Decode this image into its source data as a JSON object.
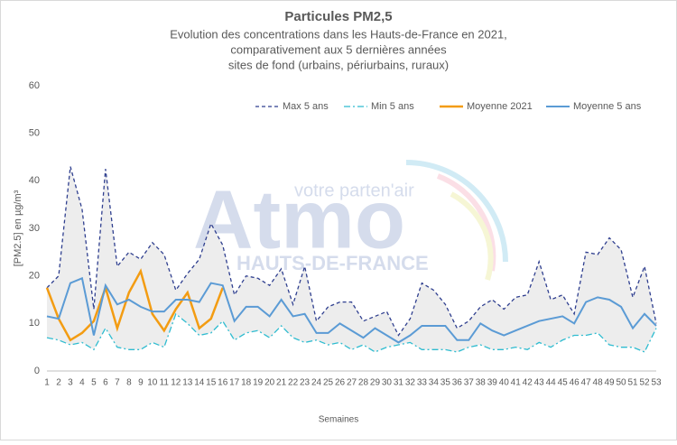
{
  "chart_data": {
    "type": "line",
    "title": "Particules PM2,5",
    "subtitle": [
      "Evolution des concentrations dans les Hauts-de-France en 2021,",
      "comparativement aux 5 dernières années",
      "sites de fond (urbains, périurbains, ruraux)"
    ],
    "y_label": "[PM2.5] en µg/m³",
    "x_label": "Semaines",
    "watermark": [
      "Atmo",
      "HAUTS-DE-FRANCE",
      "votre parten'air"
    ],
    "categories": [
      "1",
      "2",
      "3",
      "4",
      "5",
      "6",
      "7",
      "8",
      "9",
      "10",
      "11",
      "12",
      "13",
      "14",
      "15",
      "16",
      "17",
      "18",
      "19",
      "20",
      "21",
      "22",
      "23",
      "24",
      "25",
      "26",
      "27",
      "28",
      "29",
      "30",
      "31",
      "32",
      "33",
      "34",
      "35",
      "36",
      "37",
      "38",
      "39",
      "40",
      "41",
      "42",
      "43",
      "44",
      "45",
      "46",
      "47",
      "48",
      "49",
      "50",
      "51",
      "52",
      "53"
    ],
    "series": [
      {
        "name": "Max 5 ans",
        "color": "#2f3f8f",
        "dash": "4,3",
        "values": [
          17.5,
          20,
          43,
          34,
          13,
          42.5,
          22,
          25,
          23.5,
          27,
          24.5,
          17,
          20.5,
          23.5,
          31,
          26.5,
          16,
          20,
          19.5,
          18,
          21.5,
          14,
          22,
          10.5,
          13.5,
          14.5,
          14.5,
          10.5,
          11.5,
          12.5,
          7.5,
          11,
          18.5,
          17,
          14,
          9,
          10.5,
          13.5,
          15,
          13,
          15.5,
          16,
          23,
          15,
          16,
          12,
          25,
          24.5,
          28,
          25.5,
          15.5,
          22,
          10
        ]
      },
      {
        "name": "Min 5 ans",
        "color": "#2fbcd0",
        "dash": "7,3,2,3",
        "values": [
          7,
          6.5,
          5.5,
          6,
          4.5,
          9,
          5,
          4.5,
          4.5,
          6,
          5,
          12,
          10,
          7.5,
          8,
          10.5,
          6.5,
          8,
          8.5,
          7,
          9.5,
          7,
          6,
          6.5,
          5.5,
          6,
          4.5,
          5.5,
          4,
          5,
          5.5,
          6,
          4.5,
          4.5,
          4.5,
          4,
          5,
          5.5,
          4.5,
          4.5,
          5,
          4.5,
          6,
          5,
          6.5,
          7.5,
          7.5,
          8,
          5.5,
          5,
          5,
          4,
          9
        ]
      },
      {
        "name": "Moyenne 2021",
        "color": "#f39c12",
        "width": 2.5,
        "values": [
          17.5,
          11,
          6.5,
          8,
          10.5,
          17.5,
          9,
          16.5,
          21,
          12,
          8.5,
          13,
          16.5,
          9,
          11,
          17.5,
          null,
          null,
          null,
          null,
          null,
          null,
          null,
          null,
          null,
          null,
          null,
          null,
          null,
          null,
          null,
          null,
          null,
          null,
          null,
          null,
          null,
          null,
          null,
          null,
          null,
          null,
          null,
          null,
          null,
          null,
          null,
          null,
          null,
          null,
          null,
          null,
          null
        ]
      },
      {
        "name": "Moyenne 5 ans",
        "color": "#5b9bd5",
        "width": 2,
        "values": [
          11.5,
          11,
          18.5,
          19.5,
          7.5,
          18,
          14,
          15,
          13.5,
          12.5,
          12.5,
          15,
          15,
          14.5,
          18.5,
          18,
          10.5,
          13.5,
          13.5,
          11.5,
          15,
          11.5,
          12,
          8,
          8,
          10,
          8.5,
          7,
          9,
          7.5,
          6,
          7.5,
          9.5,
          9.5,
          9.5,
          6.5,
          6.5,
          10,
          8.5,
          7.5,
          8.5,
          9.5,
          10.5,
          11,
          11.5,
          10,
          14.5,
          15.5,
          15,
          13.5,
          9,
          12,
          9.5
        ]
      }
    ],
    "band_fill": "#ededed",
    "ylim": [
      0,
      60
    ],
    "yticks": [
      0,
      10,
      20,
      30,
      40,
      50,
      60
    ],
    "legend": "top"
  }
}
